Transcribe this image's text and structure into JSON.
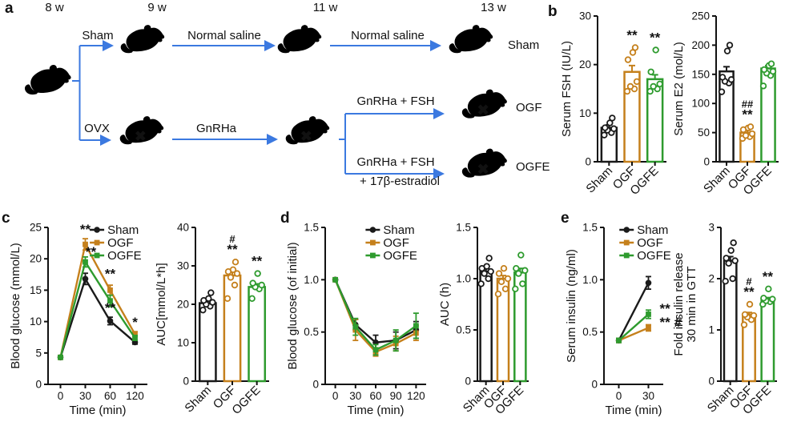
{
  "panels": {
    "a": "a",
    "b": "b",
    "c": "c",
    "d": "d",
    "e": "e"
  },
  "icons": {
    "x_mark": "✖"
  },
  "arrow_color": "#3b79e0",
  "group_colors": [
    "#1a1a1a",
    "#c5801c",
    "#2e9b2e"
  ],
  "panel_a": {
    "weeks": [
      "8 w",
      "9 w",
      "11 w",
      "13 w"
    ],
    "branch_labels": {
      "sham": "Sham",
      "saline1": "Normal saline",
      "saline2": "Normal saline",
      "ovx": "OVX",
      "gnrha": "GnRHa",
      "gnrha_fsh_1": "GnRHa + FSH",
      "gnrha_fsh_2": "GnRHa + FSH",
      "estradiol": "+ 17β-estradiol"
    },
    "endpoints": {
      "sham": "Sham",
      "ogf": "OGF",
      "ogfe": "OGFE"
    }
  },
  "chart_data": [
    {
      "id": "serum-fsh",
      "panel": "b",
      "type": "bar",
      "ylabel": [
        "Serum FSH (IU/L)"
      ],
      "ylim": [
        0,
        30
      ],
      "yticks": [
        0,
        10,
        20,
        30
      ],
      "ytick_labels": [
        "0",
        "10",
        "20",
        "30"
      ],
      "categories": [
        "Sham",
        "OGF",
        "OGFE"
      ],
      "values": [
        7,
        18.5,
        17
      ],
      "errors": [
        0.6,
        1.3,
        0.9
      ],
      "annotations": [
        [],
        [
          "**"
        ],
        [
          "**"
        ]
      ],
      "scatter": [
        [
          5.5,
          6,
          6.5,
          6.8,
          7,
          8,
          9
        ],
        [
          14.5,
          15,
          15.5,
          16.5,
          21,
          22.5,
          23.5
        ],
        [
          14.5,
          15,
          15.5,
          16,
          18.5,
          23
        ]
      ]
    },
    {
      "id": "serum-e2",
      "panel": "b",
      "type": "bar",
      "ylabel": [
        "Serum E2 (mol/L)"
      ],
      "ylim": [
        0,
        250
      ],
      "yticks": [
        0,
        50,
        100,
        150,
        200,
        250
      ],
      "ytick_labels": [
        "0",
        "50",
        "100",
        "150",
        "200",
        "250"
      ],
      "categories": [
        "Sham",
        "OGF",
        "OGFE"
      ],
      "values": [
        155,
        50,
        160
      ],
      "errors": [
        8,
        4,
        5
      ],
      "annotations": [
        [],
        [
          "##",
          "**"
        ],
        []
      ],
      "scatter": [
        [
          120,
          135,
          138,
          141,
          145,
          190,
          200
        ],
        [
          40,
          43,
          45,
          48,
          55,
          58,
          60
        ],
        [
          130,
          148,
          152,
          155,
          158,
          165,
          168
        ]
      ]
    },
    {
      "id": "gtt-glucose",
      "panel": "c",
      "type": "line",
      "ylabel": [
        "Blood glucose (mmol/L)"
      ],
      "xlabel": "Time (min)",
      "ylim": [
        0,
        25
      ],
      "yticks": [
        0,
        5,
        10,
        15,
        20,
        25
      ],
      "ytick_labels": [
        "0",
        "5",
        "10",
        "15",
        "20",
        "25"
      ],
      "xticklabels": [
        "0",
        "30",
        "60",
        "120"
      ],
      "legend": true,
      "series": [
        {
          "name": "Sham",
          "color": "#1a1a1a",
          "marker": "circle",
          "values": [
            4.3,
            16.8,
            10.1,
            6.7
          ],
          "errors": [
            0.2,
            0.9,
            0.6,
            0.3
          ]
        },
        {
          "name": "OGF",
          "color": "#c5801c",
          "marker": "square",
          "values": [
            4.3,
            22.3,
            15.0,
            8.0
          ],
          "errors": [
            0.2,
            0.9,
            0.8,
            0.4
          ]
        },
        {
          "name": "OGFE",
          "color": "#2e9b2e",
          "marker": "square",
          "values": [
            4.3,
            19.5,
            13.3,
            7.4
          ],
          "errors": [
            0.2,
            0.8,
            0.9,
            0.4
          ]
        }
      ],
      "annotations": [
        {
          "xi": 1,
          "y": 24.0,
          "text": "**"
        },
        {
          "xi": 1,
          "y": 20.4,
          "text": "**",
          "dx": 7
        },
        {
          "xi": 2,
          "y": 16.9,
          "text": "**"
        },
        {
          "xi": 2,
          "y": 11.5,
          "text": "**"
        },
        {
          "xi": 3,
          "y": 9.2,
          "text": "*"
        }
      ]
    },
    {
      "id": "gtt-auc",
      "panel": "c",
      "type": "bar",
      "ylabel": [
        "AUC[mmol/L*h]"
      ],
      "ylim": [
        0,
        40
      ],
      "yticks": [
        0,
        10,
        20,
        30,
        40
      ],
      "ytick_labels": [
        "0",
        "10",
        "20",
        "30",
        "40"
      ],
      "categories": [
        "Sham",
        "OGF",
        "OGFE"
      ],
      "values": [
        20.3,
        27.5,
        24.5
      ],
      "errors": [
        0.7,
        1.0,
        0.8
      ],
      "annotations": [
        [],
        [
          "#",
          "**"
        ],
        [
          "**"
        ]
      ],
      "scatter": [
        [
          18.5,
          19.5,
          20,
          20.5,
          21,
          21.5,
          23
        ],
        [
          21.5,
          25,
          27,
          28,
          28.5,
          29,
          31
        ],
        [
          21.5,
          24,
          24.5,
          25,
          25.5,
          28
        ]
      ]
    },
    {
      "id": "itt-glucose",
      "panel": "d",
      "type": "line",
      "ylabel": [
        "Blood glucose (of initial)"
      ],
      "xlabel": "Time (min)",
      "ylim": [
        0,
        1.5
      ],
      "yticks": [
        0,
        0.5,
        1.0,
        1.5
      ],
      "ytick_labels": [
        "0",
        "0.5",
        "1.0",
        "1.5"
      ],
      "xticklabels": [
        "0",
        "30",
        "60",
        "90",
        "120"
      ],
      "legend": true,
      "series": [
        {
          "name": "Sham",
          "color": "#1a1a1a",
          "marker": "circle",
          "values": [
            1.0,
            0.57,
            0.4,
            0.42,
            0.52
          ],
          "errors": [
            0,
            0.05,
            0.07,
            0.08,
            0.08
          ]
        },
        {
          "name": "OGF",
          "color": "#c5801c",
          "marker": "square",
          "values": [
            1.0,
            0.52,
            0.31,
            0.39,
            0.49
          ],
          "errors": [
            0,
            0.1,
            0.04,
            0.07,
            0.07
          ]
        },
        {
          "name": "OGFE",
          "color": "#2e9b2e",
          "marker": "square",
          "values": [
            1.0,
            0.55,
            0.33,
            0.42,
            0.56
          ],
          "errors": [
            0,
            0.08,
            0.05,
            0.1,
            0.12
          ]
        }
      ],
      "annotations": []
    },
    {
      "id": "itt-auc",
      "panel": "d",
      "type": "bar",
      "ylabel": [
        "AUC (h)"
      ],
      "ylim": [
        0,
        1.5
      ],
      "yticks": [
        0,
        0.5,
        1.0,
        1.5
      ],
      "ytick_labels": [
        "0",
        "0.5",
        "1.0",
        "1.5"
      ],
      "categories": [
        "Sham",
        "OGF",
        "OGFE"
      ],
      "values": [
        1.07,
        1.0,
        1.06
      ],
      "errors": [
        0.03,
        0.03,
        0.04
      ],
      "annotations": [
        [],
        [],
        []
      ],
      "scatter": [
        [
          0.95,
          1.0,
          1.05,
          1.07,
          1.1,
          1.12,
          1.2
        ],
        [
          0.85,
          0.9,
          0.97,
          1.0,
          1.05,
          1.1
        ],
        [
          0.9,
          0.95,
          1.05,
          1.08,
          1.1,
          1.23
        ]
      ]
    },
    {
      "id": "serum-insulin",
      "panel": "e",
      "type": "line",
      "ylabel": [
        "Serum insulin (ng/ml)"
      ],
      "xlabel": "Time (min)",
      "ylim": [
        0,
        1.5
      ],
      "yticks": [
        0,
        0.5,
        1.0,
        1.5
      ],
      "ytick_labels": [
        "0",
        "0.5",
        "1.0",
        "1.5"
      ],
      "xticklabels": [
        "0",
        "30"
      ],
      "legend": true,
      "series": [
        {
          "name": "Sham",
          "color": "#1a1a1a",
          "marker": "circle",
          "values": [
            0.42,
            0.97
          ],
          "errors": [
            0.02,
            0.06
          ]
        },
        {
          "name": "OGF",
          "color": "#c5801c",
          "marker": "square",
          "values": [
            0.42,
            0.54
          ],
          "errors": [
            0.02,
            0.03
          ]
        },
        {
          "name": "OGFE",
          "color": "#2e9b2e",
          "marker": "square",
          "values": [
            0.42,
            0.67
          ],
          "errors": [
            0.02,
            0.04
          ]
        }
      ],
      "annotations": [
        {
          "xi": 1,
          "y": 0.68,
          "text": "**",
          "dx": 14,
          "anchor": "start"
        },
        {
          "xi": 1,
          "y": 0.55,
          "text": "** #",
          "dx": 14,
          "anchor": "start"
        }
      ]
    },
    {
      "id": "fold-insulin",
      "panel": "e",
      "type": "bar",
      "ylabel": [
        "Fold insulin release",
        "30 min in GTT"
      ],
      "ylim": [
        0,
        3
      ],
      "yticks": [
        0,
        1,
        2,
        3
      ],
      "ytick_labels": [
        "0",
        "1",
        "2",
        "3"
      ],
      "categories": [
        "Sham",
        "OGF",
        "OGFE"
      ],
      "values": [
        2.35,
        1.3,
        1.6
      ],
      "errors": [
        0.08,
        0.04,
        0.03
      ],
      "annotations": [
        [],
        [
          "#",
          "**"
        ],
        [
          "**"
        ]
      ],
      "scatter": [
        [
          1.95,
          2.0,
          2.3,
          2.35,
          2.4,
          2.55,
          2.7
        ],
        [
          1.1,
          1.2,
          1.25,
          1.28,
          1.3,
          1.5
        ],
        [
          1.5,
          1.55,
          1.57,
          1.6,
          1.62,
          1.8
        ]
      ]
    }
  ]
}
